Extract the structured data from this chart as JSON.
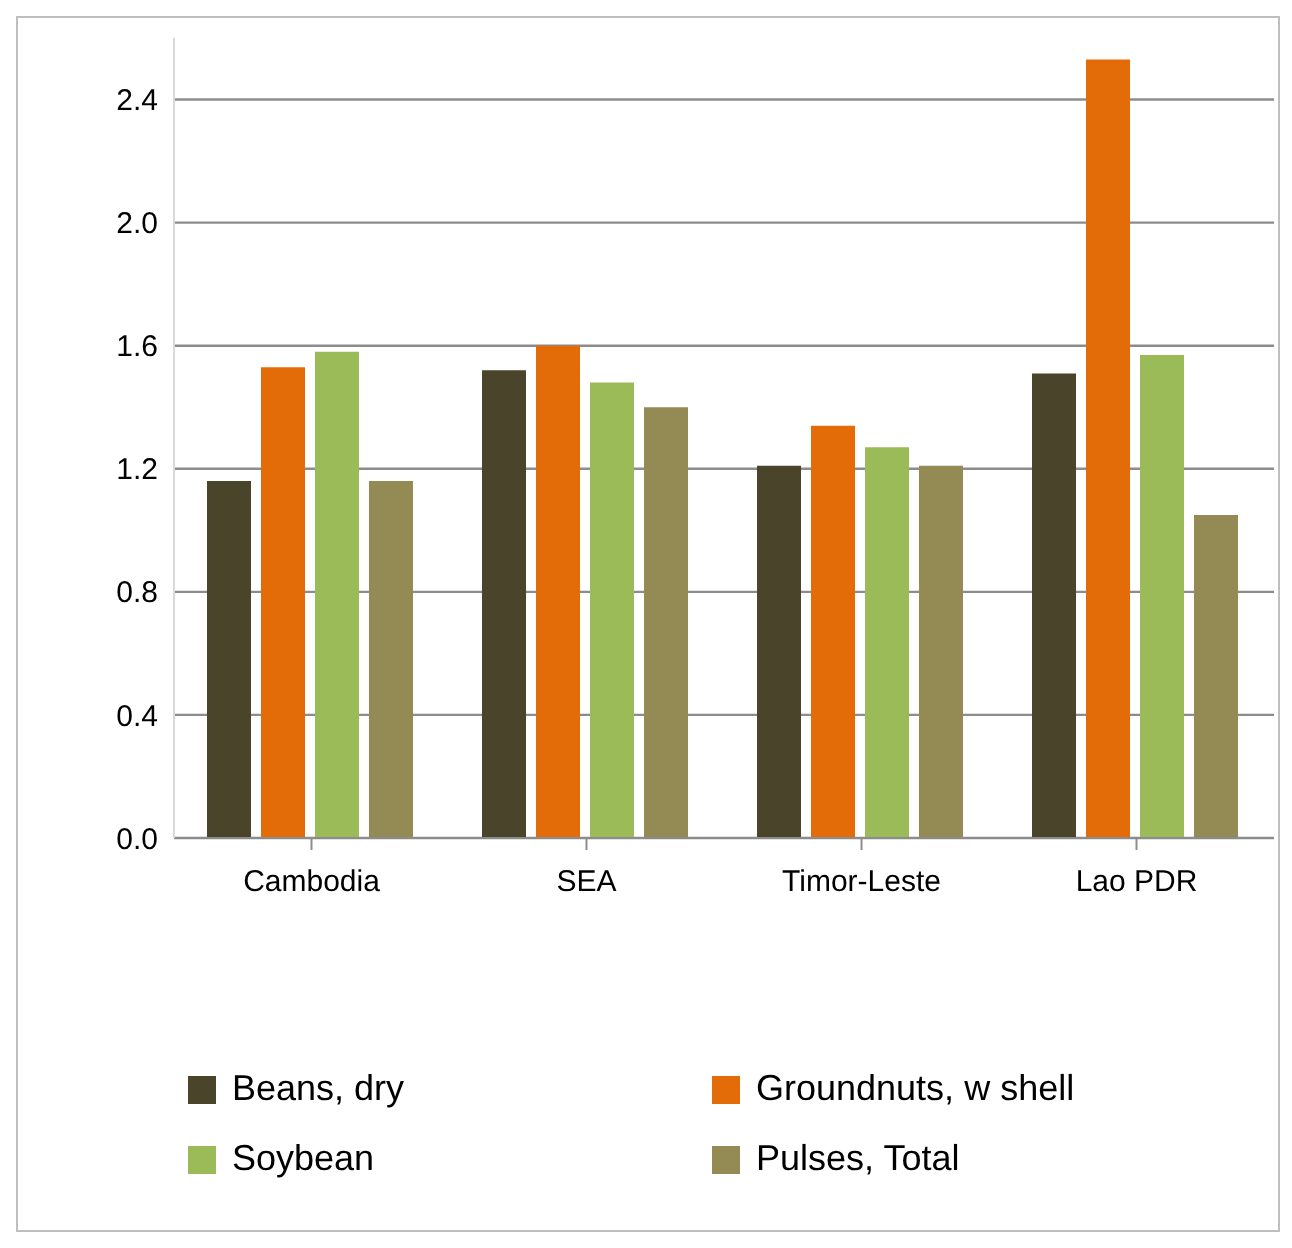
{
  "chart_data": {
    "type": "bar",
    "categories": [
      "Cambodia",
      "SEA",
      "Timor-Leste",
      "Lao PDR"
    ],
    "series": [
      {
        "name": "Beans, dry",
        "color": "#4a452a",
        "values": [
          1.16,
          1.52,
          1.21,
          1.51
        ]
      },
      {
        "name": "Groundnuts, w shell",
        "color": "#e36c09",
        "values": [
          1.53,
          1.6,
          1.34,
          2.53
        ]
      },
      {
        "name": "Soybean",
        "color": "#9bbb59",
        "values": [
          1.58,
          1.48,
          1.27,
          1.57
        ]
      },
      {
        "name": "Pulses, Total",
        "color": "#948a54",
        "values": [
          1.16,
          1.4,
          1.21,
          1.05
        ]
      }
    ],
    "ylim": [
      0,
      2.6
    ],
    "yticks": [
      {
        "value": 0,
        "label": "0.0"
      },
      0.4,
      0.8,
      1.2,
      1.6,
      {
        "value": 2,
        "label": "2.0"
      },
      2.4
    ],
    "grid": "y",
    "legend": "bottom"
  }
}
